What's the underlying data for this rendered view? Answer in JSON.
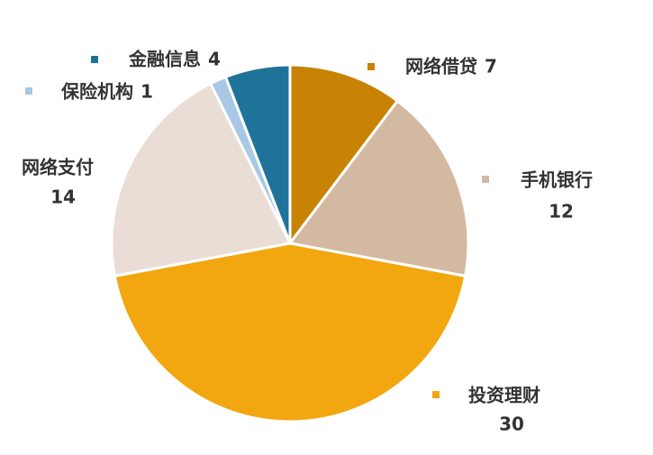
{
  "chart_data": {
    "type": "pie",
    "categories": [
      "网络借贷",
      "手机银行",
      "投资理财",
      "网络支付",
      "保险机构",
      "金融信息"
    ],
    "values": [
      7,
      12,
      30,
      14,
      1,
      4
    ],
    "colors": [
      "#c98304",
      "#d3b9a1",
      "#f2a710",
      "#eaddd6",
      "#a8c8e6",
      "#1f7398"
    ]
  }
}
